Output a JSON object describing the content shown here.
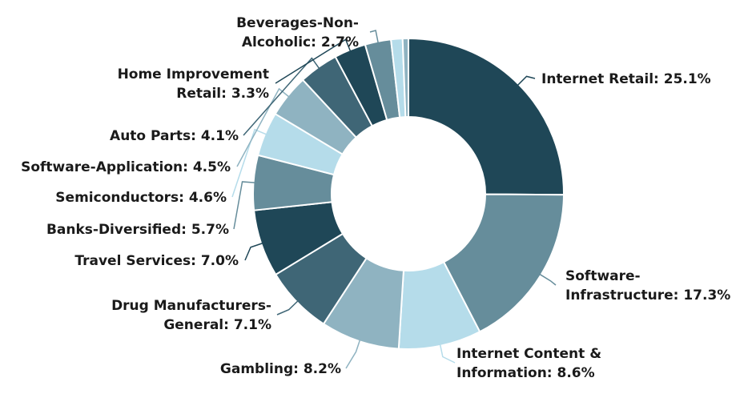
{
  "chart_data": {
    "type": "pie",
    "title": "",
    "donut": true,
    "slices": [
      {
        "name": "Internet Retail",
        "value": 25.1,
        "label_lines": [
          "Internet Retail: 25.1%"
        ],
        "color": "#1f4757"
      },
      {
        "name": "Software-Infrastructure",
        "value": 17.3,
        "label_lines": [
          "Software-",
          "Infrastructure: 17.3%"
        ],
        "color": "#668d9b"
      },
      {
        "name": "Internet Content & Information",
        "value": 8.6,
        "label_lines": [
          "Internet Content &",
          "Information: 8.6%"
        ],
        "color": "#b5dcea"
      },
      {
        "name": "Gambling",
        "value": 8.2,
        "label_lines": [
          "Gambling: 8.2%"
        ],
        "color": "#8fb3c1"
      },
      {
        "name": "Drug Manufacturers-General",
        "value": 7.1,
        "label_lines": [
          "Drug Manufacturers-",
          "General: 7.1%"
        ],
        "color": "#3f6676"
      },
      {
        "name": "Travel Services",
        "value": 7.0,
        "label_lines": [
          "Travel Services: 7.0%"
        ],
        "color": "#1f4757"
      },
      {
        "name": "Banks-Diversified",
        "value": 5.7,
        "label_lines": [
          "Banks-Diversified: 5.7%"
        ],
        "color": "#668d9b"
      },
      {
        "name": "Semiconductors",
        "value": 4.6,
        "label_lines": [
          "Semiconductors: 4.6%"
        ],
        "color": "#b5dcea"
      },
      {
        "name": "Software-Application",
        "value": 4.5,
        "label_lines": [
          "Software-Application: 4.5%"
        ],
        "color": "#8fb3c1"
      },
      {
        "name": "Auto Parts",
        "value": 4.1,
        "label_lines": [
          "Auto Parts: 4.1%"
        ],
        "color": "#3f6676"
      },
      {
        "name": "Home Improvement Retail",
        "value": 3.3,
        "label_lines": [
          "Home Improvement",
          "Retail: 3.3%"
        ],
        "color": "#1f4757"
      },
      {
        "name": "Beverages-Non-Alcoholic",
        "value": 2.7,
        "label_lines": [
          "Beverages-Non-",
          "Alcoholic: 2.7%"
        ],
        "color": "#668d9b"
      },
      {
        "name": "",
        "value": 1.2,
        "label_lines": [],
        "color": "#b5dcea"
      },
      {
        "name": "",
        "value": 0.6,
        "label_lines": [],
        "color": "#8fb3c1"
      }
    ]
  }
}
